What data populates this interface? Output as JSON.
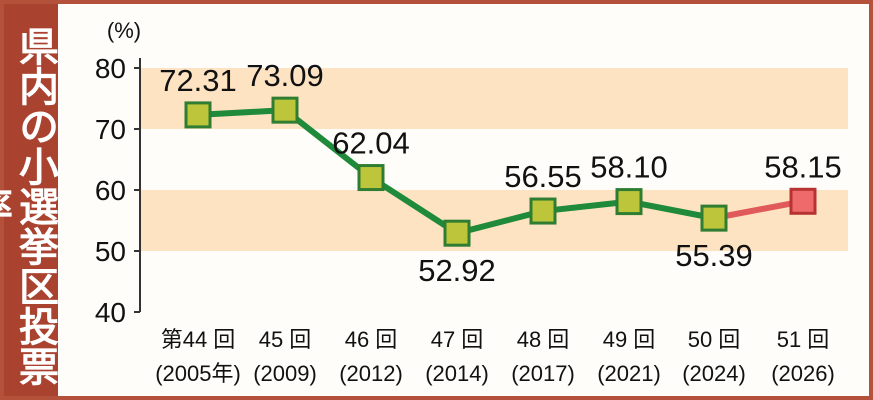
{
  "chart_data": {
    "type": "line",
    "title": "県内の小選挙区投票率",
    "ylabel": "(%)",
    "ylim": [
      40,
      80
    ],
    "yticks": [
      40,
      50,
      60,
      70,
      80
    ],
    "categories": [
      {
        "line1": "第44 回",
        "line2": "(2005年)"
      },
      {
        "line1": "45 回",
        "line2": "(2009)"
      },
      {
        "line1": "46 回",
        "line2": "(2012)"
      },
      {
        "line1": "47 回",
        "line2": "(2014)"
      },
      {
        "line1": "48 回",
        "line2": "(2017)"
      },
      {
        "line1": "49 回",
        "line2": "(2021)"
      },
      {
        "line1": "50 回",
        "line2": "(2024)"
      },
      {
        "line1": "51 回",
        "line2": "(2026)"
      }
    ],
    "values": [
      72.31,
      73.09,
      62.04,
      52.92,
      56.55,
      58.1,
      55.39,
      58.15
    ],
    "labels": [
      "72.31",
      "73.09",
      "62.04",
      "52.92",
      "56.55",
      "58.10",
      "55.39",
      "58.15"
    ],
    "label_positions": [
      "above",
      "above",
      "above",
      "below",
      "above",
      "above",
      "below",
      "above"
    ],
    "highlight_last": true,
    "colors": {
      "line": "#1e8a3a",
      "marker": "#bdc53a",
      "marker_stroke": "#2e7d32",
      "highlight_line": "#e05a5a",
      "highlight_marker": "#ef6b6b",
      "highlight_stroke": "#b83232",
      "band": "#fde3c2"
    }
  }
}
